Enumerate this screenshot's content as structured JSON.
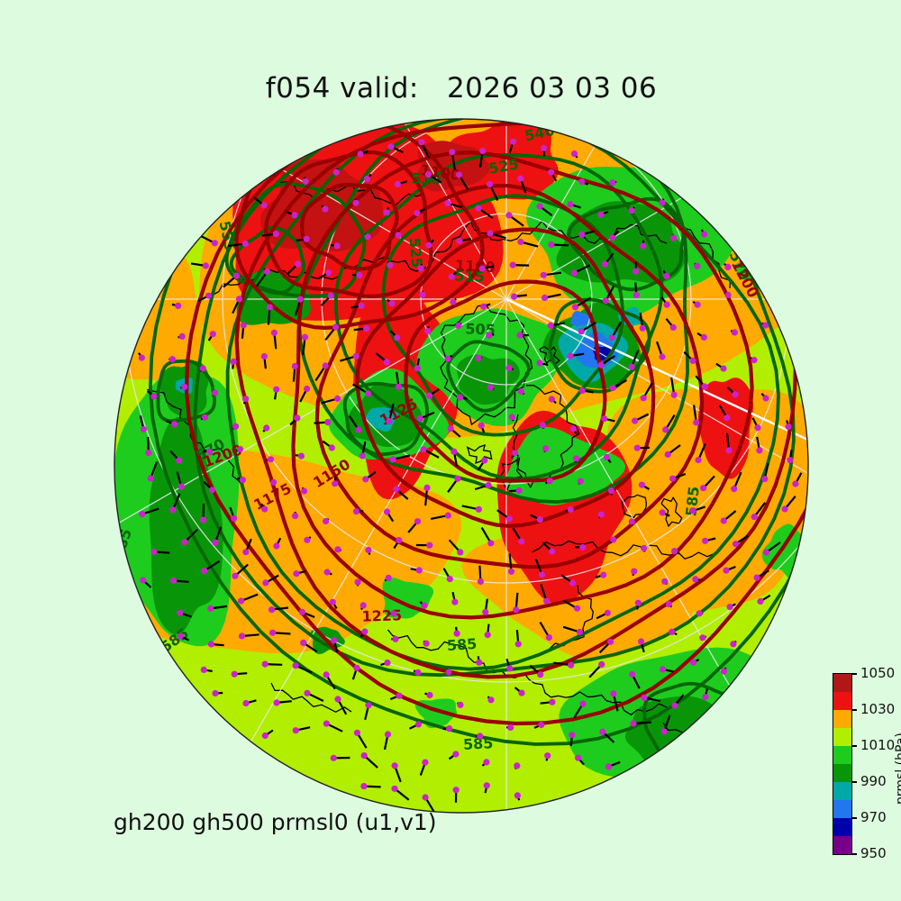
{
  "title": "f054 valid:   2026 03 03 06",
  "footer_label": "gh200 gh500 prmsl0 (u1,v1)",
  "chart_data": {
    "type": "heatmap",
    "subtype": "orthographic-globe-weather-map",
    "title": "f054 valid:   2026 03 03 06",
    "annotation": "gh200 gh500 prmsl0 (u1,v1)",
    "projection": "orthographic, north polar view",
    "colorbar": {
      "label": "prmsl (hPa)",
      "range": [
        950,
        1050
      ],
      "ticks_top_to_bottom": [
        "1050",
        "1030",
        "1010",
        "990",
        "970",
        "950"
      ],
      "segment_colors_top_to_bottom": [
        "#b01818",
        "#ee1111",
        "#ffaa00",
        "#b2ee00",
        "#1ecc1e",
        "#089608",
        "#00a8a8",
        "#2277ee",
        "#0000aa",
        "#770088"
      ]
    },
    "layers": [
      {
        "name": "prmsl filled contours",
        "units": "hPa",
        "palette": "colorbar"
      },
      {
        "name": "gh200 height contours",
        "color": "#990000",
        "labeled_levels": [
          1100,
          1125,
          1150,
          1175,
          1200,
          1225
        ]
      },
      {
        "name": "gh500 height contours",
        "color": "#056605",
        "labeled_levels": [
          505,
          510,
          515,
          525,
          540,
          555,
          570,
          585
        ]
      },
      {
        "name": "wind vectors (u1,v1)",
        "vector_color": "#000000",
        "dot_color": "#cc22cc"
      },
      {
        "name": "coastlines",
        "color": "#000000"
      },
      {
        "name": "graticule",
        "color": "#e8e8e8"
      }
    ],
    "contour_labels": {
      "gh200": [
        "1100",
        "1100",
        "1125",
        "1150",
        "1175",
        "1200",
        "1200",
        "1225",
        "1225"
      ],
      "gh500": [
        "540",
        "525",
        "525",
        "510",
        "515",
        "505",
        "555",
        "570",
        "570",
        "585",
        "585",
        "585",
        "585",
        "585"
      ]
    },
    "palette": {
      "background": "#ddfcdf",
      "chartreuse": "#b2ee00",
      "orange": "#ffaa00",
      "red": "#ee1111",
      "dark_red_fill": "#c41111",
      "green": "#1ecc1e",
      "dark_green_fill": "#089608",
      "teal": "#00a8a8",
      "blue": "#2277ee",
      "navy": "#0000aa",
      "gh200_contour": "#990000",
      "gh500_contour": "#056605",
      "coastline": "#000000",
      "graticule": "#e8e8e8",
      "white_meridian": "#ffffff",
      "wind_vector": "#000000",
      "wind_dot": "#cc22cc",
      "globe_outline": "#222222",
      "text": "#111111"
    }
  }
}
